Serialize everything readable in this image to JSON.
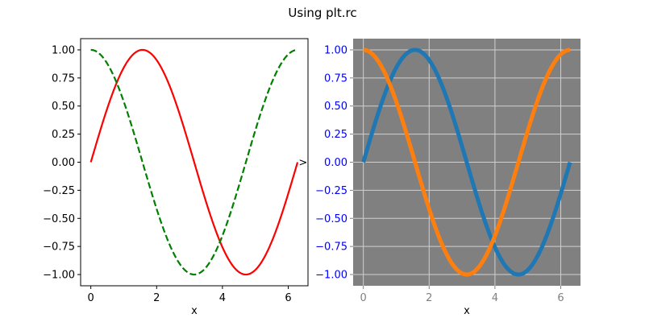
{
  "figure": {
    "title": "Using plt.rc",
    "background": "#ffffff"
  },
  "chart_data": [
    {
      "type": "line",
      "xlabel": "x",
      "ylabel": "",
      "xlim": [
        -0.31,
        6.6
      ],
      "ylim": [
        -1.1,
        1.1
      ],
      "xticks": [
        0,
        2,
        4,
        6
      ],
      "yticks": [
        -1.0,
        -0.75,
        -0.5,
        -0.25,
        0.0,
        0.25,
        0.5,
        0.75,
        1.0
      ],
      "ytick_labels": [
        "−1.00",
        "−0.75",
        "−0.50",
        "−0.25",
        "0.00",
        "0.25",
        "0.50",
        "0.75",
        "1.00"
      ],
      "xtick_labels": [
        "0",
        "2",
        "4",
        "6"
      ],
      "grid": false,
      "facecolor": "#ffffff",
      "tick_label_color": "#000000",
      "x_domain": [
        0,
        6.283
      ],
      "series": [
        {
          "function": "sin",
          "color": "#ff0000",
          "linestyle": "solid",
          "linewidth": 2.2
        },
        {
          "function": "cos",
          "color": "#008000",
          "linestyle": "dashed",
          "linewidth": 2.2
        }
      ],
      "annotations": [
        {
          "text": ">",
          "x": 6.45,
          "y": 0.0
        }
      ]
    },
    {
      "type": "line",
      "xlabel": "x",
      "ylabel": "",
      "xlim": [
        -0.31,
        6.6
      ],
      "ylim": [
        -1.1,
        1.1
      ],
      "xticks": [
        0,
        2,
        4,
        6
      ],
      "yticks": [
        -1.0,
        -0.75,
        -0.5,
        -0.25,
        0.0,
        0.25,
        0.5,
        0.75,
        1.0
      ],
      "ytick_labels": [
        "−1.00",
        "−0.75",
        "−0.50",
        "−0.25",
        "0.00",
        "0.25",
        "0.50",
        "0.75",
        "1.00"
      ],
      "xtick_labels": [
        "0",
        "2",
        "4",
        "6"
      ],
      "grid": true,
      "facecolor": "#808080",
      "grid_color": "#cfcfcf",
      "xtick_label_color": "#808080",
      "ytick_label_color": "#0000ff",
      "x_domain": [
        0,
        6.283
      ],
      "series": [
        {
          "function": "sin",
          "color": "#1f77b4",
          "linestyle": "solid",
          "linewidth": 5
        },
        {
          "function": "cos",
          "color": "#ff7f0e",
          "linestyle": "solid",
          "linewidth": 5
        }
      ]
    }
  ]
}
